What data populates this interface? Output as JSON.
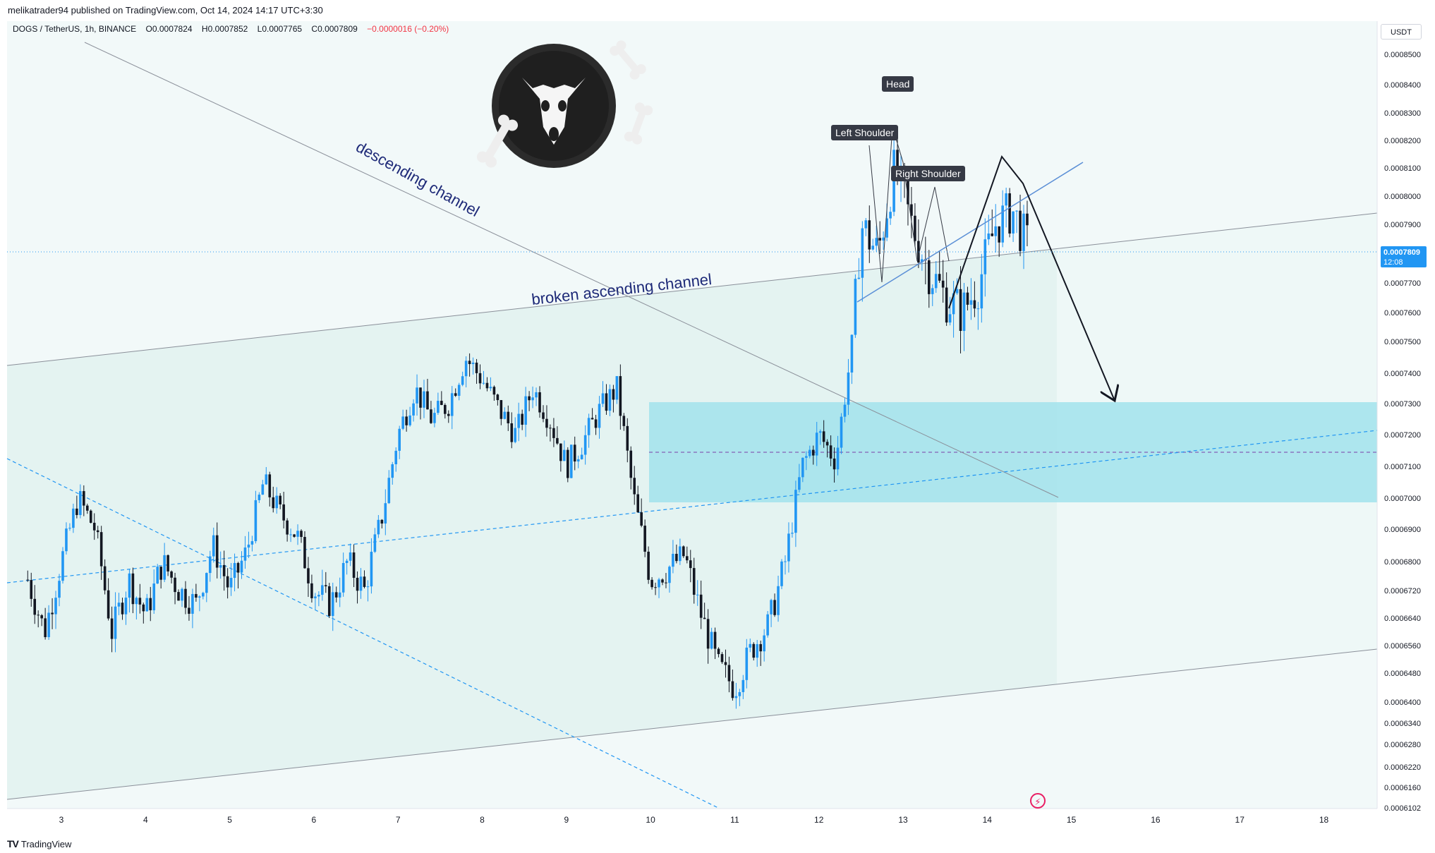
{
  "header": {
    "publisher_line": "melikatrader94 published on TradingView.com, Oct 14, 2024 14:17 UTC+3:30"
  },
  "symbol": {
    "title": "DOGS / TetherUS, 1h, BINANCE",
    "open": "O0.0007824",
    "high": "H0.0007852",
    "low": "L0.0007765",
    "close": "C0.0007809",
    "change": "−0.0000016 (−0.20%)",
    "change_color": "#f23645"
  },
  "currency_button": "USDT",
  "price_tag": {
    "price": "0.0007809",
    "countdown": "12:08",
    "color": "#2196f3"
  },
  "annotations": {
    "descending": "descending channel",
    "ascending": "broken ascending channel",
    "head": "Head",
    "left_shoulder": "Left Shoulder",
    "right_shoulder": "Right Shoulder"
  },
  "footer": {
    "brand": "TradingView"
  },
  "colors": {
    "candle_up": "#2196f3",
    "candle_down": "#131722",
    "zone": "#a5e3ec",
    "channel_fill": "#e4f3f1"
  },
  "chart_data": {
    "type": "candlestick",
    "y_axis_ticks": [
      "0.0008500",
      "0.0008400",
      "0.0008300",
      "0.0008200",
      "0.0008100",
      "0.0008000",
      "0.0007900",
      "0.0007700",
      "0.0007600",
      "0.0007500",
      "0.0007400",
      "0.0007300",
      "0.0007200",
      "0.0007100",
      "0.0007000",
      "0.0006900",
      "0.0006800",
      "0.0006720",
      "0.0006640",
      "0.0006560",
      "0.0006480",
      "0.0006400",
      "0.0006340",
      "0.0006280",
      "0.0006220",
      "0.0006160",
      "0.0006102"
    ],
    "x_axis_ticks": [
      "3",
      "4",
      "5",
      "6",
      "7",
      "8",
      "9",
      "10",
      "11",
      "12",
      "13",
      "14",
      "15",
      "16",
      "17",
      "18"
    ],
    "path_points": [
      [
        2.6,
        0.000675
      ],
      [
        2.8,
        0.00066
      ],
      [
        3.0,
        0.00068
      ],
      [
        3.2,
        0.0007
      ],
      [
        3.4,
        0.00069
      ],
      [
        3.6,
        0.00066
      ],
      [
        3.8,
        0.000675
      ],
      [
        4.0,
        0.000665
      ],
      [
        4.2,
        0.00068
      ],
      [
        4.4,
        0.000672
      ],
      [
        4.6,
        0.000668
      ],
      [
        4.8,
        0.000685
      ],
      [
        5.0,
        0.000672
      ],
      [
        5.2,
        0.000683
      ],
      [
        5.4,
        0.000705
      ],
      [
        5.6,
        0.000695
      ],
      [
        5.8,
        0.000688
      ],
      [
        6.0,
        0.000672
      ],
      [
        6.2,
        0.000668
      ],
      [
        6.4,
        0.00068
      ],
      [
        6.6,
        0.000672
      ],
      [
        6.8,
        0.000693
      ],
      [
        7.0,
        0.00072
      ],
      [
        7.2,
        0.000735
      ],
      [
        7.4,
        0.000725
      ],
      [
        7.6,
        0.00073
      ],
      [
        7.8,
        0.000745
      ],
      [
        8.0,
        0.000738
      ],
      [
        8.2,
        0.000728
      ],
      [
        8.4,
        0.00072
      ],
      [
        8.6,
        0.000735
      ],
      [
        8.8,
        0.000725
      ],
      [
        9.0,
        0.00071
      ],
      [
        9.2,
        0.000718
      ],
      [
        9.4,
        0.000728
      ],
      [
        9.6,
        0.000735
      ],
      [
        9.8,
        0.0007
      ],
      [
        10.0,
        0.000675
      ],
      [
        10.2,
        0.000678
      ],
      [
        10.4,
        0.000682
      ],
      [
        10.6,
        0.000665
      ],
      [
        10.8,
        0.00065
      ],
      [
        11.0,
        0.000644
      ],
      [
        11.2,
        0.000655
      ],
      [
        11.4,
        0.000662
      ],
      [
        11.6,
        0.00068
      ],
      [
        11.8,
        0.00071
      ],
      [
        12.0,
        0.00072
      ],
      [
        12.2,
        0.000712
      ],
      [
        12.4,
        0.00075
      ],
      [
        12.5,
        0.00079
      ],
      [
        12.7,
        0.00078
      ],
      [
        12.9,
        0.00081
      ],
      [
        13.1,
        0.00079
      ],
      [
        13.3,
        0.000775
      ],
      [
        13.5,
        0.000765
      ],
      [
        13.7,
        0.00076
      ],
      [
        13.9,
        0.00077
      ],
      [
        14.1,
        0.00079
      ],
      [
        14.3,
        0.000795
      ],
      [
        14.5,
        0.000781
      ]
    ],
    "projection": [
      [
        14.1,
        0.000815
      ],
      [
        15.4,
        0.00073
      ]
    ],
    "zone": {
      "x_from": 10.0,
      "x_to": 18.6,
      "y_from": 0.0006995,
      "y_to": 0.000731
    }
  }
}
